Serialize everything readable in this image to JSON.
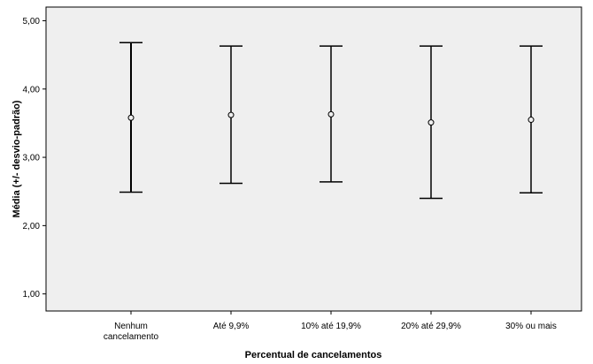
{
  "chart_data": {
    "type": "errorbar",
    "xlabel": "Percentual de cancelamentos",
    "ylabel": "Média (+/- desvio-padrão)",
    "ylim": [
      0.75,
      5.2
    ],
    "y_ticks": [
      "1,00",
      "2,00",
      "3,00",
      "4,00",
      "5,00"
    ],
    "y_tick_values": [
      1,
      2,
      3,
      4,
      5
    ],
    "categories": [
      [
        "Nenhum",
        "cancelamento"
      ],
      [
        "Até 9,9%"
      ],
      [
        "10% até 19,9%"
      ],
      [
        "20% até 29,9%"
      ],
      [
        "30% ou mais"
      ]
    ],
    "means": [
      3.58,
      3.62,
      3.63,
      3.51,
      3.55
    ],
    "upper": [
      4.68,
      4.63,
      4.63,
      4.63,
      4.63
    ],
    "lower": [
      2.49,
      2.62,
      2.64,
      2.4,
      2.48
    ],
    "grid": false
  },
  "colors": {
    "plot_background": "#efefef",
    "line": "#000000"
  }
}
